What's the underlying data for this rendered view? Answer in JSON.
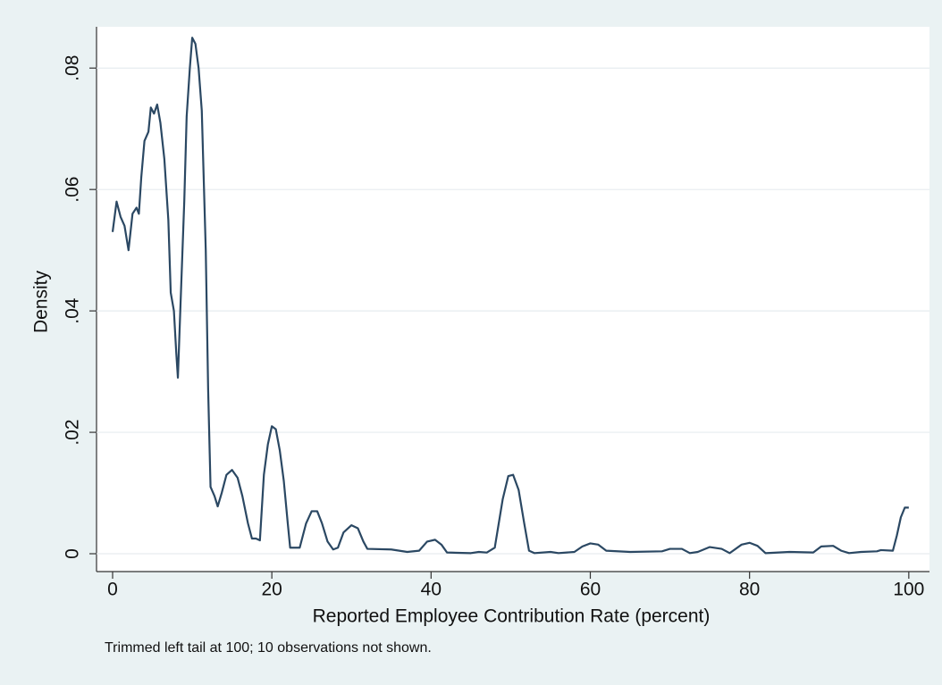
{
  "chart_data": {
    "type": "line",
    "xlabel": "Reported Employee Contribution Rate (percent)",
    "ylabel": "Density",
    "note": "Trimmed left tail at 100; 10 observations not shown.",
    "color": "#2b4863",
    "grid": true,
    "xlim": [
      -2.02,
      102.6
    ],
    "ylim": [
      -0.00294,
      0.0868
    ],
    "xticks": [
      0,
      20,
      40,
      60,
      80,
      100
    ],
    "yticks": [
      0,
      {
        "value": 0.02,
        "label": ".02"
      },
      {
        "value": 0.04,
        "label": ".04"
      },
      {
        "value": 0.06,
        "label": ".06"
      },
      {
        "value": 0.08,
        "label": ".08"
      }
    ],
    "x": [
      0,
      0.5,
      1,
      1.5,
      2,
      2.5,
      3,
      3.3,
      3.6,
      4,
      4.5,
      4.8,
      5.2,
      5.6,
      6,
      6.5,
      7,
      7.3,
      7.7,
      8,
      8.2,
      8.5,
      9,
      9.3,
      9.7,
      10,
      10.4,
      10.8,
      11.2,
      11.7,
      12,
      12.3,
      12.8,
      13.2,
      13.7,
      14.3,
      15,
      15.7,
      16.3,
      17,
      17.5,
      18,
      18.5,
      19,
      19.5,
      20,
      20.5,
      21,
      21.5,
      22,
      22.3,
      23.5,
      24.3,
      25,
      25.7,
      26.3,
      27,
      27.7,
      28.3,
      29,
      30,
      30.8,
      31.5,
      32,
      35,
      37,
      38.5,
      39.5,
      40.5,
      41.3,
      42,
      45,
      46,
      47,
      48,
      49,
      49.7,
      50.3,
      51,
      51.7,
      52.3,
      53,
      55,
      56,
      58,
      59,
      60,
      61,
      62,
      65,
      69,
      70,
      71.5,
      72.5,
      73.5,
      75,
      76.5,
      77.5,
      79,
      80,
      81,
      82,
      85,
      88,
      89,
      90.5,
      91.5,
      92.5,
      94,
      96,
      96.5,
      98,
      98.5,
      99,
      99.5,
      100
    ],
    "values": [
      0.053,
      0.058,
      0.0555,
      0.054,
      0.05,
      0.056,
      0.057,
      0.056,
      0.062,
      0.068,
      0.0695,
      0.0735,
      0.0725,
      0.074,
      0.071,
      0.065,
      0.055,
      0.043,
      0.04,
      0.033,
      0.029,
      0.04,
      0.058,
      0.072,
      0.08,
      0.085,
      0.084,
      0.08,
      0.073,
      0.05,
      0.027,
      0.011,
      0.0095,
      0.0078,
      0.01,
      0.013,
      0.0138,
      0.0125,
      0.0095,
      0.005,
      0.0025,
      0.0025,
      0.0022,
      0.013,
      0.018,
      0.021,
      0.0205,
      0.017,
      0.012,
      0.005,
      0.001,
      0.001,
      0.005,
      0.007,
      0.007,
      0.005,
      0.002,
      0.0007,
      0.001,
      0.0035,
      0.0047,
      0.0042,
      0.002,
      0.0008,
      0.0007,
      0.0003,
      0.0005,
      0.002,
      0.0023,
      0.0015,
      0.0002,
      0.0001,
      0.0003,
      0.0002,
      0.001,
      0.009,
      0.0128,
      0.013,
      0.0105,
      0.005,
      0.0005,
      0.0001,
      0.0003,
      0.0001,
      0.0003,
      0.0012,
      0.0017,
      0.0015,
      0.0005,
      0.0003,
      0.0004,
      0.0008,
      0.0008,
      0.0001,
      0.0003,
      0.0011,
      0.0008,
      0.0001,
      0.0015,
      0.0018,
      0.0013,
      0.0001,
      0.0003,
      0.0002,
      0.0012,
      0.0013,
      0.0005,
      0.0001,
      0.0003,
      0.0004,
      0.0006,
      0.0005,
      0.003,
      0.006,
      0.0076,
      0.0076
    ]
  }
}
